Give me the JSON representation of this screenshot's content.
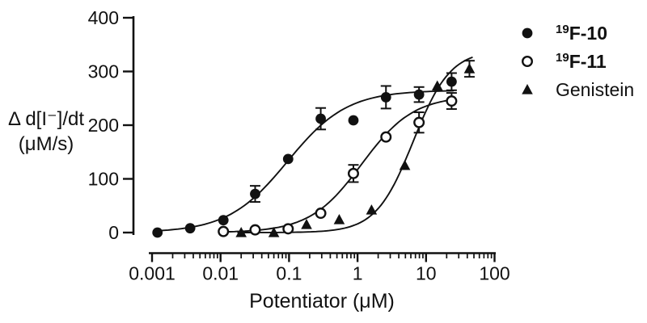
{
  "figure": {
    "background": "#ffffff",
    "ink_color": "#111111"
  },
  "chart_data": {
    "type": "scatter",
    "title": "",
    "x_scale": "log",
    "xlabel": "Potentiator (μM)",
    "ylabel_line1": "Δ d[I⁻]/dt",
    "ylabel_line2": "(μM/s)",
    "xlim": [
      0.001,
      100
    ],
    "ylim": [
      0,
      400
    ],
    "grid": false,
    "legend_position": "right",
    "x_ticks": [
      {
        "value": 0.001,
        "label": "0.001"
      },
      {
        "value": 0.01,
        "label": "0.01"
      },
      {
        "value": 0.1,
        "label": "0.1"
      },
      {
        "value": 1,
        "label": "1"
      },
      {
        "value": 10,
        "label": "10"
      },
      {
        "value": 100,
        "label": "100"
      }
    ],
    "y_ticks": [
      {
        "value": 0,
        "label": "0"
      },
      {
        "value": 100,
        "label": "100"
      },
      {
        "value": 200,
        "label": "200"
      },
      {
        "value": 300,
        "label": "300"
      },
      {
        "value": 400,
        "label": "400"
      }
    ],
    "series": [
      {
        "name": "19F-10",
        "legend": {
          "superscript": "19",
          "text": "F-10",
          "bold": true
        },
        "marker": "filled-circle",
        "color": "#111111",
        "points": [
          {
            "x": 0.0012,
            "y": 0,
            "err": null
          },
          {
            "x": 0.0036,
            "y": 8,
            "err": null
          },
          {
            "x": 0.011,
            "y": 23,
            "err": null
          },
          {
            "x": 0.032,
            "y": 72,
            "err": 15
          },
          {
            "x": 0.097,
            "y": 137,
            "err": null
          },
          {
            "x": 0.29,
            "y": 212,
            "err": 20
          },
          {
            "x": 0.87,
            "y": 209,
            "err": null
          },
          {
            "x": 2.6,
            "y": 252,
            "err": 21
          },
          {
            "x": 7.9,
            "y": 257,
            "err": 14
          },
          {
            "x": 23.6,
            "y": 281,
            "err": 16
          }
        ],
        "fit": {
          "model": "hill",
          "bottom": 0,
          "top": 265,
          "ec50": 0.095,
          "hill": 1.0,
          "x_start": 0.0011,
          "x_end": 25
        }
      },
      {
        "name": "19F-11",
        "legend": {
          "superscript": "19",
          "text": "F-11",
          "bold": true
        },
        "marker": "open-circle",
        "color": "#111111",
        "points": [
          {
            "x": 0.011,
            "y": 2,
            "err": null
          },
          {
            "x": 0.032,
            "y": 5,
            "err": null
          },
          {
            "x": 0.097,
            "y": 7,
            "err": null
          },
          {
            "x": 0.29,
            "y": 36,
            "err": null
          },
          {
            "x": 0.87,
            "y": 110,
            "err": 16
          },
          {
            "x": 2.6,
            "y": 178,
            "err": null
          },
          {
            "x": 7.9,
            "y": 205,
            "err": 19
          },
          {
            "x": 23.6,
            "y": 245,
            "err": 15
          }
        ],
        "fit": {
          "model": "hill",
          "bottom": 0,
          "top": 255,
          "ec50": 1.15,
          "hill": 1.15,
          "x_start": 0.0095,
          "x_end": 25
        }
      },
      {
        "name": "Genistein",
        "legend": {
          "superscript": "",
          "text": "Genistein",
          "bold": false
        },
        "marker": "filled-triangle",
        "color": "#111111",
        "points": [
          {
            "x": 0.02,
            "y": 0,
            "err": null
          },
          {
            "x": 0.06,
            "y": 0,
            "err": null
          },
          {
            "x": 0.18,
            "y": 15,
            "err": null
          },
          {
            "x": 0.54,
            "y": 24,
            "err": null
          },
          {
            "x": 1.6,
            "y": 42,
            "err": null
          },
          {
            "x": 4.9,
            "y": 125,
            "err": null
          },
          {
            "x": 14.6,
            "y": 273,
            "err": null
          },
          {
            "x": 43,
            "y": 305,
            "err": 15
          }
        ],
        "fit": {
          "model": "hill",
          "bottom": 0,
          "top": 340,
          "ec50": 6.5,
          "hill": 1.6,
          "x_start": 0.018,
          "x_end": 47
        }
      }
    ]
  }
}
